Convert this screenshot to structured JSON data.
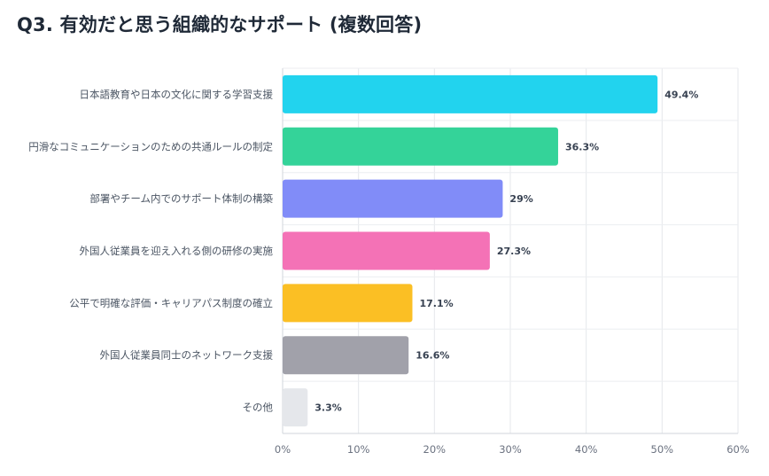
{
  "chart_data": {
    "type": "bar",
    "orientation": "horizontal",
    "title": "Q3. 有効だと思う組織的なサポート (複数回答)",
    "categories": [
      "日本語教育や日本の文化に関する学習支援",
      "円滑なコミュニケーションのための共通ルールの制定",
      "部署やチーム内でのサポート体制の構築",
      "外国人従業員を迎え入れる側の研修の実施",
      "公平で明確な評価・キャリアパス制度の確立",
      "外国人従業員同士のネットワーク支援",
      "その他"
    ],
    "values": [
      49.4,
      36.3,
      29,
      27.3,
      17.1,
      16.6,
      3.3
    ],
    "value_labels": [
      "49.4%",
      "36.3%",
      "29%",
      "27.3%",
      "17.1%",
      "16.6%",
      "3.3%"
    ],
    "colors": [
      "#22d3ee",
      "#34d399",
      "#818cf8",
      "#f472b6",
      "#fbbf24",
      "#a1a1aa",
      "#e5e7eb"
    ],
    "xlim": [
      0,
      60
    ],
    "xticks": [
      0,
      10,
      20,
      30,
      40,
      50,
      60
    ],
    "xtick_labels": [
      "0%",
      "10%",
      "20%",
      "30%",
      "40%",
      "50%",
      "60%"
    ],
    "xlabel": "",
    "ylabel": "",
    "grid": true,
    "legend": "none"
  }
}
